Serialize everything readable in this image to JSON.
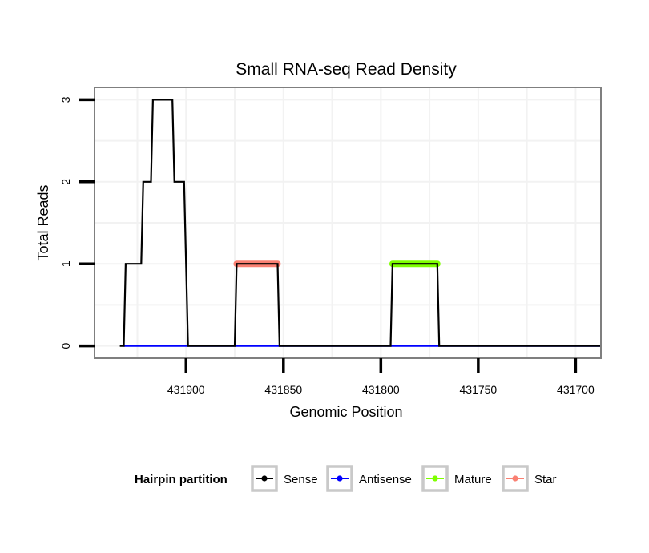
{
  "chart_data": {
    "type": "line",
    "title": "Small RNA-seq Read Density",
    "xlabel": "Genomic Position",
    "ylabel": "Total Reads",
    "x_reversed": true,
    "xlim": [
      431947,
      431687
    ],
    "ylim": [
      -0.15,
      3.15
    ],
    "x_ticks": [
      431900,
      431850,
      431800,
      431750,
      431700
    ],
    "x_tick_labels": [
      "431900",
      "431850",
      "431800",
      "431750",
      "431700"
    ],
    "y_ticks": [
      0,
      1,
      2,
      3
    ],
    "y_tick_labels": [
      "0",
      "1",
      "2",
      "3"
    ],
    "grid": true,
    "legend": {
      "title": "Hairpin partition",
      "position": "bottom",
      "entries": [
        {
          "label": "Sense",
          "color": "#000000"
        },
        {
          "label": "Antisense",
          "color": "#0000ff"
        },
        {
          "label": "Mature",
          "color": "#7fff00"
        },
        {
          "label": "Star",
          "color": "#fa8072"
        }
      ]
    },
    "series": [
      {
        "name": "Sense",
        "color": "#000000",
        "points": [
          [
            431934,
            0
          ],
          [
            431932,
            0
          ],
          [
            431931,
            1
          ],
          [
            431923,
            1
          ],
          [
            431922,
            2
          ],
          [
            431918,
            2
          ],
          [
            431917,
            3
          ],
          [
            431907,
            3
          ],
          [
            431906,
            2
          ],
          [
            431901,
            2
          ],
          [
            431899,
            0
          ],
          [
            431875,
            0
          ],
          [
            431874,
            1
          ],
          [
            431853,
            1
          ],
          [
            431852,
            0
          ],
          [
            431795,
            0
          ],
          [
            431794,
            1
          ],
          [
            431771,
            1
          ],
          [
            431770,
            0
          ],
          [
            431687,
            0
          ]
        ]
      },
      {
        "name": "Antisense",
        "color": "#0000ff",
        "points": [
          [
            431932,
            0
          ],
          [
            431687,
            0
          ]
        ]
      },
      {
        "name": "Mature",
        "color": "#7fff00",
        "points": [
          [
            431794,
            1
          ],
          [
            431771,
            1
          ]
        ]
      },
      {
        "name": "Star",
        "color": "#fa8072",
        "points": [
          [
            431874,
            1
          ],
          [
            431853,
            1
          ]
        ]
      }
    ]
  }
}
